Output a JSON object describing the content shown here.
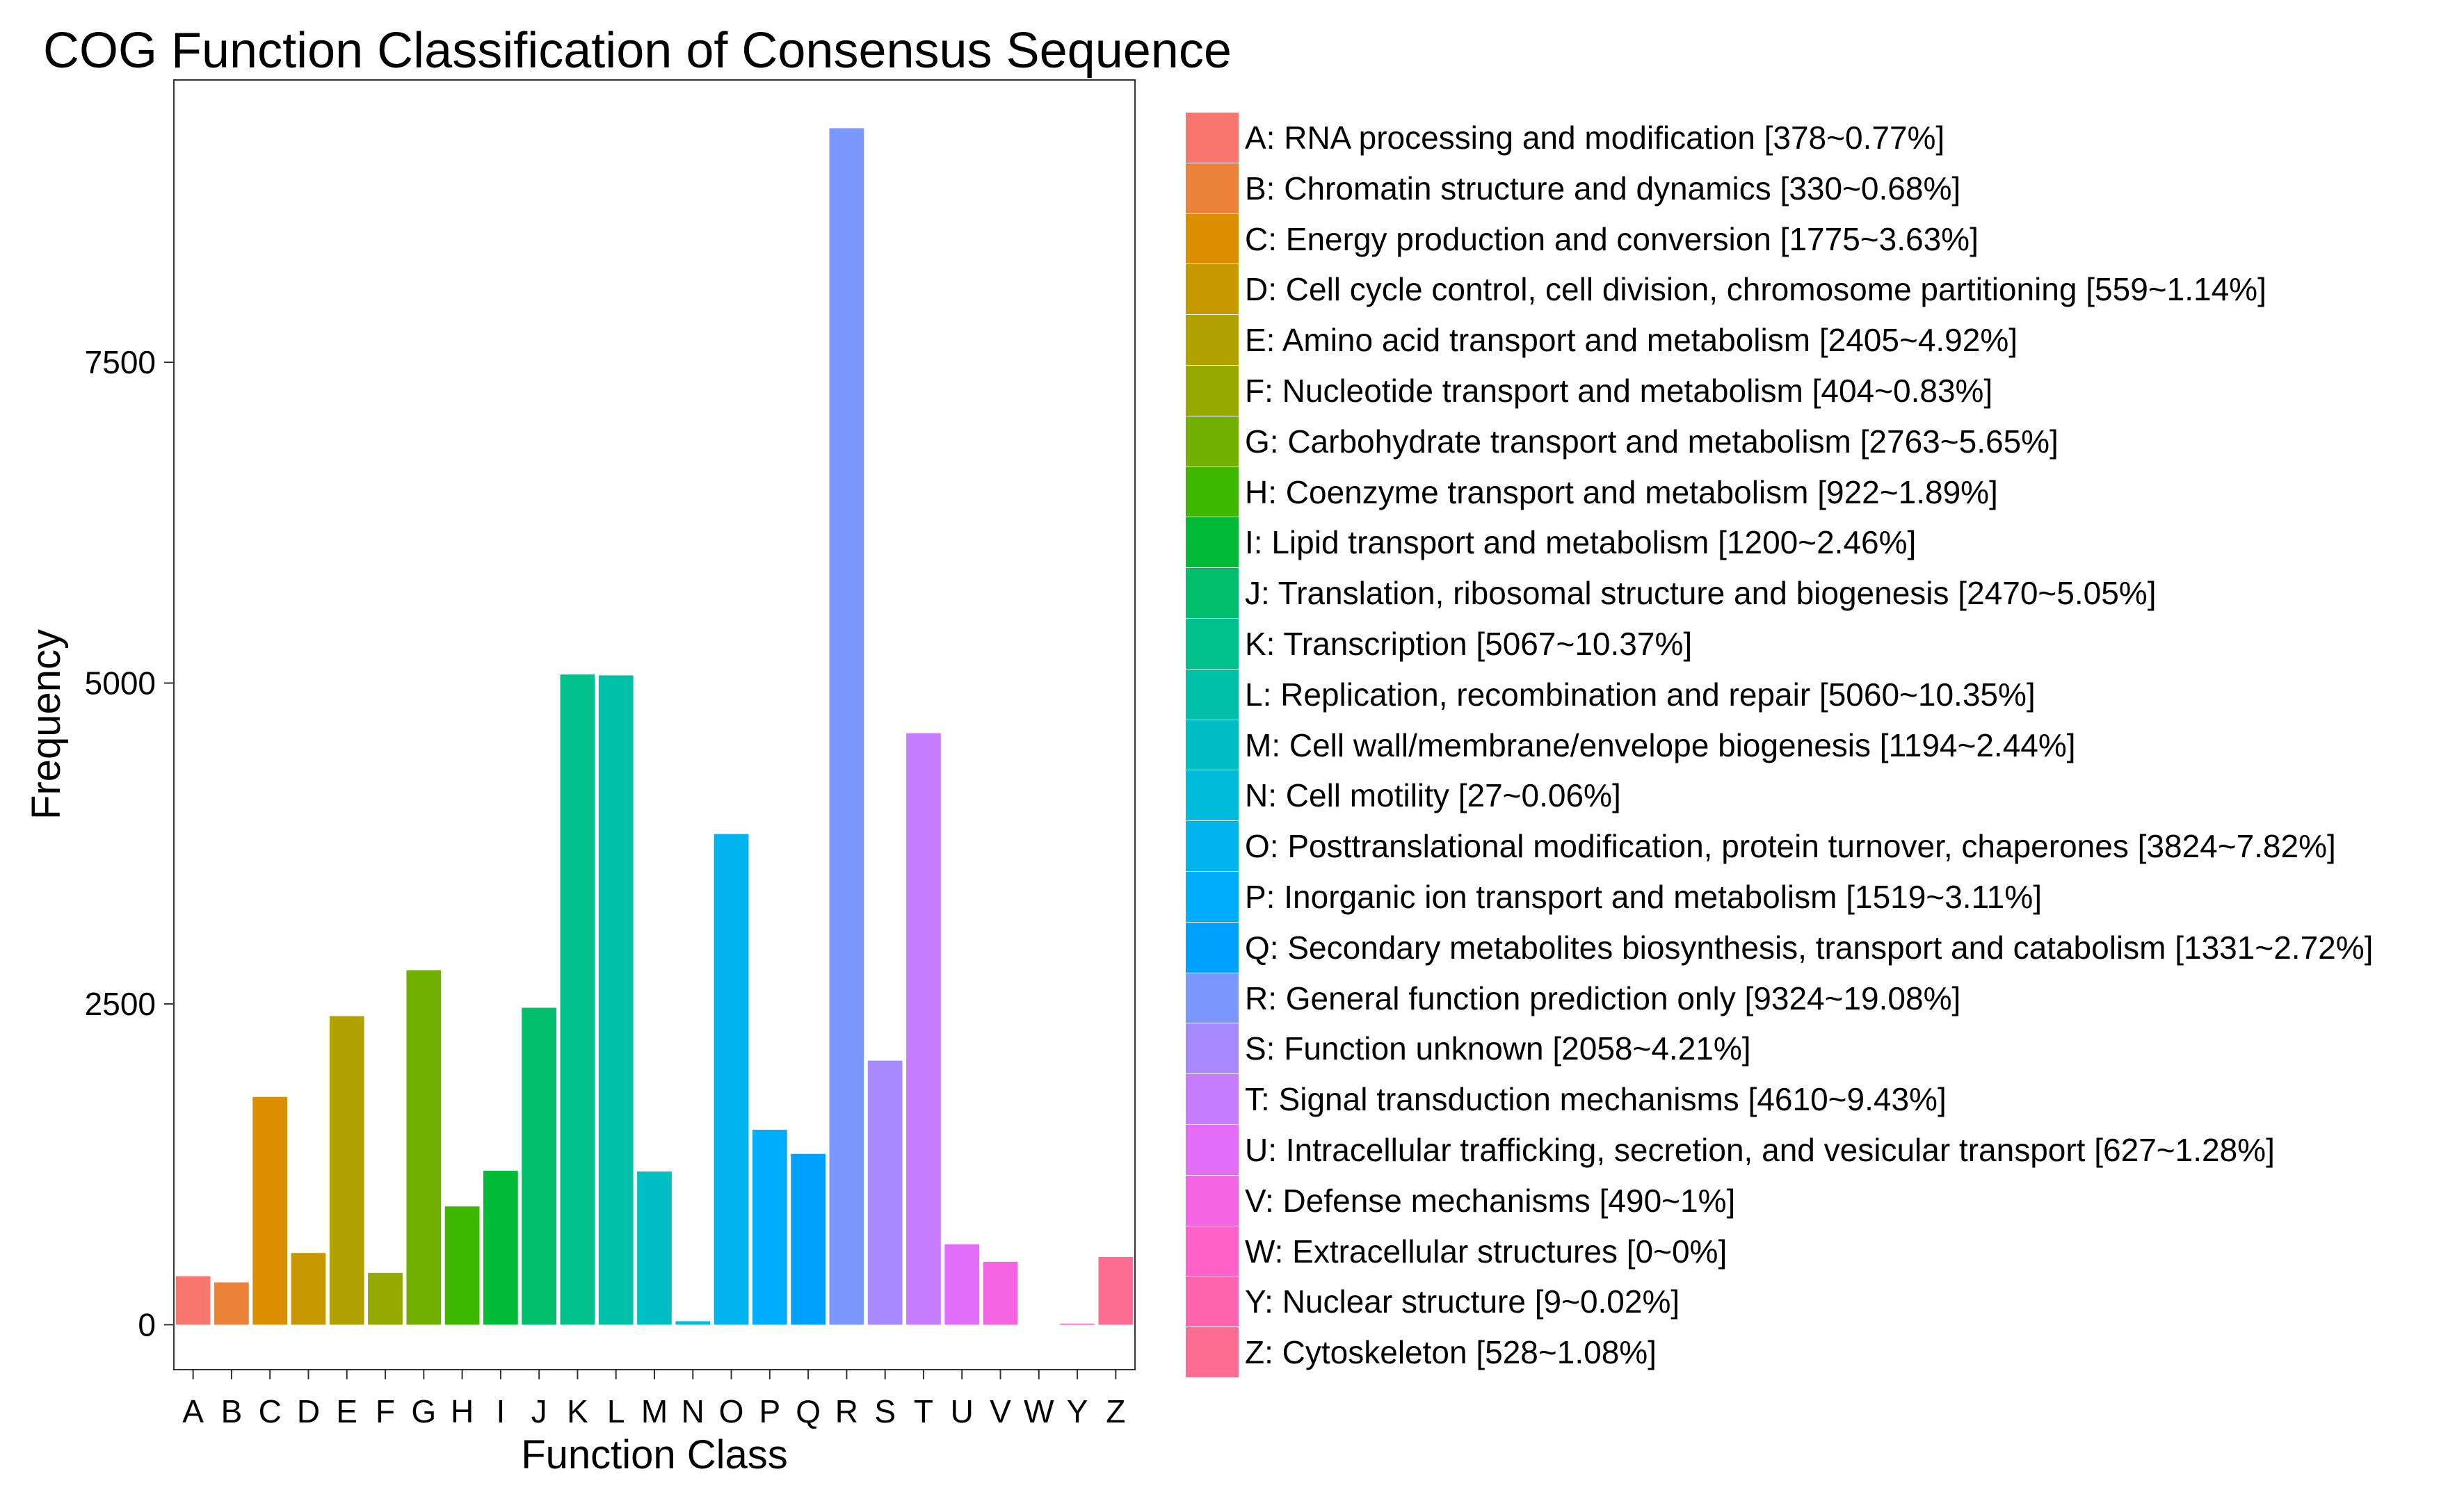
{
  "chart_data": {
    "type": "bar",
    "title": "COG Function Classification of Consensus Sequence",
    "xlabel": "Function Class",
    "ylabel": "Frequency",
    "ylim": [
      -350,
      9700
    ],
    "yticks": [
      0,
      2500,
      5000,
      7500
    ],
    "ytick_labels": [
      "0",
      "2500",
      "5000",
      "7500"
    ],
    "grid": false,
    "legend_position": "right",
    "categories": [
      "A",
      "B",
      "C",
      "D",
      "E",
      "F",
      "G",
      "H",
      "I",
      "J",
      "K",
      "L",
      "M",
      "N",
      "O",
      "P",
      "Q",
      "R",
      "S",
      "T",
      "U",
      "V",
      "W",
      "Y",
      "Z"
    ],
    "values": [
      378,
      330,
      1775,
      559,
      2405,
      404,
      2763,
      922,
      1200,
      2470,
      5067,
      5060,
      1194,
      27,
      3824,
      1519,
      1331,
      9324,
      2058,
      4610,
      627,
      490,
      0,
      9,
      528
    ],
    "colors": [
      "#F8766D",
      "#EC8239",
      "#DB8E00",
      "#C79800",
      "#B0A200",
      "#94AA00",
      "#72B000",
      "#3DB700",
      "#00BA38",
      "#00BE6C",
      "#00C08B",
      "#00C1A7",
      "#00BFC4",
      "#00BBDA",
      "#00B4F0",
      "#00ACFC",
      "#00A0FF",
      "#7997FF",
      "#A58AFF",
      "#C77CFF",
      "#E26EF7",
      "#F564E3",
      "#FF61C9",
      "#FF62AF",
      "#FF6C91"
    ],
    "legend": [
      "A: RNA processing and modification [378~0.77%]",
      "B: Chromatin structure and dynamics [330~0.68%]",
      "C: Energy production and conversion [1775~3.63%]",
      "D: Cell cycle control, cell division, chromosome partitioning [559~1.14%]",
      "E: Amino acid transport and metabolism [2405~4.92%]",
      "F: Nucleotide transport and metabolism [404~0.83%]",
      "G: Carbohydrate transport and metabolism [2763~5.65%]",
      "H: Coenzyme transport and metabolism [922~1.89%]",
      "I: Lipid transport and metabolism [1200~2.46%]",
      "J: Translation, ribosomal structure and biogenesis [2470~5.05%]",
      "K: Transcription [5067~10.37%]",
      "L: Replication, recombination and repair [5060~10.35%]",
      "M: Cell wall/membrane/envelope biogenesis [1194~2.44%]",
      "N: Cell motility [27~0.06%]",
      "O: Posttranslational modification, protein turnover, chaperones [3824~7.82%]",
      "P: Inorganic ion transport and metabolism [1519~3.11%]",
      "Q: Secondary metabolites biosynthesis, transport and catabolism [1331~2.72%]",
      "R: General function prediction only [9324~19.08%]",
      "S: Function unknown [2058~4.21%]",
      "T: Signal transduction mechanisms [4610~9.43%]",
      "U: Intracellular trafficking, secretion, and vesicular transport [627~1.28%]",
      "V: Defense mechanisms [490~1%]",
      "W: Extracellular structures [0~0%]",
      "Y: Nuclear structure [9~0.02%]",
      "Z: Cytoskeleton [528~1.08%]"
    ]
  }
}
